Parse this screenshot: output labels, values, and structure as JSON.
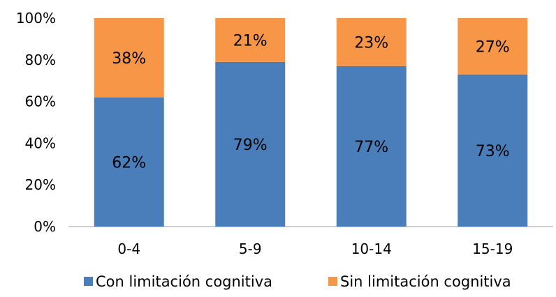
{
  "chart_data": {
    "type": "bar",
    "stacked": true,
    "categories": [
      "0-4",
      "5-9",
      "10-14",
      "15-19"
    ],
    "series": [
      {
        "name": "Con limitación cognitiva",
        "values": [
          62,
          79,
          77,
          73
        ],
        "labels": [
          "62%",
          "79%",
          "77%",
          "73%"
        ],
        "color": "#4a7ebb"
      },
      {
        "name": "Sin limitación cognitiva",
        "values": [
          38,
          21,
          23,
          27
        ],
        "labels": [
          "38%",
          "21%",
          "23%",
          "27%"
        ],
        "color": "#f79646"
      }
    ],
    "ylim": [
      0,
      100
    ],
    "yticks": [
      0,
      20,
      40,
      60,
      80,
      100
    ],
    "ytick_labels": [
      "0%",
      "20%",
      "40%",
      "60%",
      "80%",
      "100%"
    ],
    "grid": false,
    "legend_position": "bottom",
    "title": "",
    "xlabel": "",
    "ylabel": ""
  }
}
